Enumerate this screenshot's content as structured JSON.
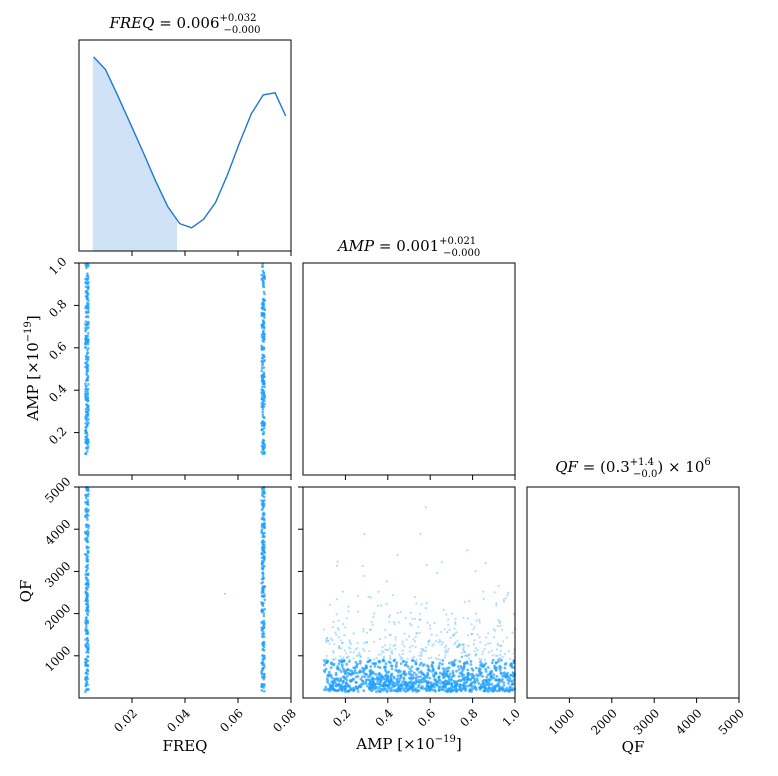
{
  "chart_data": {
    "type": "corner",
    "parameters": [
      "FREQ",
      "AMP",
      "QF"
    ],
    "colors": {
      "line": "#1f77d4",
      "fill": "#cfe2f6",
      "scatter": "#1ea0ff"
    },
    "titles": {
      "freq": {
        "lhs": "FREQ",
        "eq": " = 0.006",
        "sup": "+0.032",
        "sub": "−0.000"
      },
      "amp": {
        "lhs": "AMP",
        "eq": " = 0.001",
        "sup": "+0.021",
        "sub": "−0.000"
      },
      "qf": {
        "lhs": "QF",
        "eq": " = (0.3",
        "sup": "+1.4",
        "sub": "−0.0",
        "tail": ") × 10",
        "exp": "6"
      }
    },
    "axis_labels": {
      "freq_x": "FREQ",
      "amp_x": "AMP [×10",
      "amp_x_exp": "−19",
      "amp_x_close": "]",
      "amp_y": "AMP [×10",
      "amp_y_exp": "−19",
      "amp_y_close": "]",
      "qf_x": "QF",
      "qf_y": "QF"
    },
    "freq_range": [
      0.0,
      0.08
    ],
    "amp_range": [
      0.0,
      1.0
    ],
    "qf_range": [
      0,
      5000
    ],
    "freq_ticks": [
      0.02,
      0.04,
      0.06,
      0.08
    ],
    "freq_tick_labels": [
      "0.02",
      "0.04",
      "0.06",
      "0.08"
    ],
    "amp_ticks": [
      0.2,
      0.4,
      0.6,
      0.8,
      1.0
    ],
    "amp_tick_labels": [
      "0.2",
      "0.4",
      "0.6",
      "0.8",
      "1.0"
    ],
    "qf_ticks": [
      1000,
      2000,
      3000,
      4000,
      5000
    ],
    "qf_tick_labels": [
      "1000",
      "2000",
      "3000",
      "4000",
      "5000"
    ],
    "freq_marginal": {
      "x": [
        0.0055,
        0.01,
        0.0145,
        0.0195,
        0.0245,
        0.029,
        0.0335,
        0.038,
        0.0425,
        0.047,
        0.0515,
        0.056,
        0.0605,
        0.065,
        0.0695,
        0.074,
        0.078
      ],
      "density": [
        0.92,
        0.86,
        0.74,
        0.6,
        0.46,
        0.33,
        0.21,
        0.13,
        0.11,
        0.15,
        0.23,
        0.36,
        0.51,
        0.65,
        0.74,
        0.75,
        0.64
      ],
      "fill_to": 0.037,
      "ylim": [
        0,
        1
      ]
    },
    "freq_modes": [
      0.003,
      0.0695
    ],
    "amp_sample_range": [
      0.1,
      1.0
    ],
    "qf_sample_range": [
      150,
      5000
    ],
    "qf_sample_scale": 600
  }
}
